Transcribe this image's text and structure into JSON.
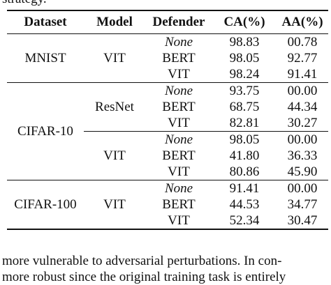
{
  "caption_fragment": "strategy.",
  "table": {
    "headers": [
      "Dataset",
      "Model",
      "Defender",
      "CA(%)",
      "AA(%)"
    ],
    "groups": [
      {
        "dataset": "MNIST",
        "models": [
          {
            "model": "VIT",
            "rows": [
              {
                "defender": "None",
                "ca": "98.83",
                "aa": "00.78"
              },
              {
                "defender": "BERT",
                "ca": "98.05",
                "aa": "92.77"
              },
              {
                "defender": "VIT",
                "ca": "98.24",
                "aa": "91.41"
              }
            ]
          }
        ]
      },
      {
        "dataset": "CIFAR-10",
        "models": [
          {
            "model": "ResNet",
            "rows": [
              {
                "defender": "None",
                "ca": "93.75",
                "aa": "00.00"
              },
              {
                "defender": "BERT",
                "ca": "68.75",
                "aa": "44.34"
              },
              {
                "defender": "VIT",
                "ca": "82.81",
                "aa": "30.27"
              }
            ]
          },
          {
            "model": "VIT",
            "rows": [
              {
                "defender": "None",
                "ca": "98.05",
                "aa": "00.00"
              },
              {
                "defender": "BERT",
                "ca": "41.80",
                "aa": "36.33"
              },
              {
                "defender": "VIT",
                "ca": "80.86",
                "aa": "45.90"
              }
            ]
          }
        ]
      },
      {
        "dataset": "CIFAR-100",
        "models": [
          {
            "model": "VIT",
            "rows": [
              {
                "defender": "None",
                "ca": "91.41",
                "aa": "00.00"
              },
              {
                "defender": "BERT",
                "ca": "44.53",
                "aa": "34.77"
              },
              {
                "defender": "VIT",
                "ca": "52.34",
                "aa": "30.47"
              }
            ]
          }
        ]
      }
    ]
  },
  "body_text": [
    "more vulnerable to adversarial perturbations. In con-",
    "more robust since the original training task is entirely"
  ]
}
